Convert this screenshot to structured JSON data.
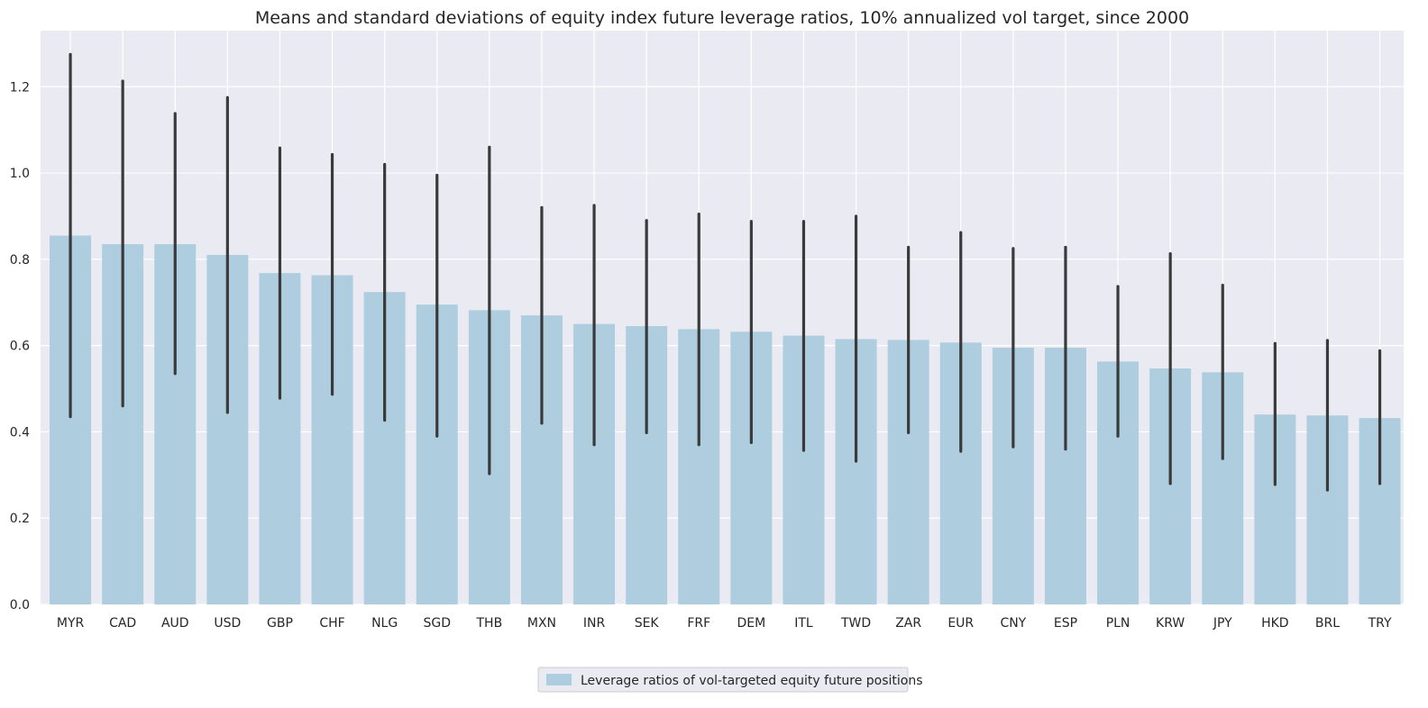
{
  "chart_data": {
    "type": "bar",
    "title": "Means and standard deviations of equity index future leverage ratios, 10% annualized vol target, since 2000",
    "xlabel": "",
    "ylabel": "",
    "ylim": [
      0,
      1.33
    ],
    "yticks": [
      "0.0",
      "0.2",
      "0.4",
      "0.6",
      "0.8",
      "1.0",
      "1.2"
    ],
    "grid": true,
    "legend_position": "bottom-center",
    "bar_color": "#aecddf",
    "errbar_color": "#3a3a3a",
    "background_color": "#eaeaf2",
    "categories": [
      "MYR",
      "CAD",
      "AUD",
      "USD",
      "GBP",
      "CHF",
      "NLG",
      "SGD",
      "THB",
      "MXN",
      "INR",
      "SEK",
      "FRF",
      "DEM",
      "ITL",
      "TWD",
      "ZAR",
      "EUR",
      "CNY",
      "ESP",
      "PLN",
      "KRW",
      "JPY",
      "HKD",
      "BRL",
      "TRY"
    ],
    "series": [
      {
        "name": "Leverage ratios of vol-targeted equity future positions",
        "values": [
          0.855,
          0.835,
          0.835,
          0.81,
          0.768,
          0.763,
          0.724,
          0.695,
          0.682,
          0.67,
          0.65,
          0.645,
          0.638,
          0.632,
          0.623,
          0.615,
          0.613,
          0.607,
          0.595,
          0.595,
          0.563,
          0.547,
          0.538,
          0.44,
          0.438,
          0.432
        ],
        "err_low": [
          0.435,
          0.46,
          0.535,
          0.445,
          0.478,
          0.487,
          0.427,
          0.39,
          0.303,
          0.42,
          0.37,
          0.398,
          0.37,
          0.375,
          0.357,
          0.332,
          0.398,
          0.355,
          0.365,
          0.36,
          0.39,
          0.28,
          0.338,
          0.278,
          0.265,
          0.28
        ],
        "err_high": [
          1.275,
          1.213,
          1.138,
          1.175,
          1.058,
          1.043,
          1.02,
          0.995,
          1.06,
          0.92,
          0.925,
          0.89,
          0.905,
          0.888,
          0.888,
          0.9,
          0.828,
          0.862,
          0.825,
          0.828,
          0.737,
          0.813,
          0.74,
          0.605,
          0.612,
          0.588
        ]
      }
    ]
  }
}
